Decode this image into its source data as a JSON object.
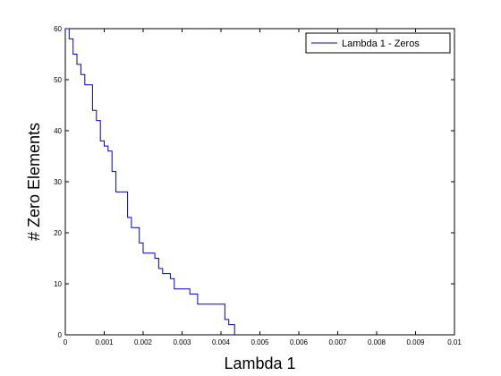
{
  "chart_data": {
    "type": "line",
    "title": "",
    "xlabel": "Lambda 1",
    "ylabel": "# Zero Elements",
    "xlim": [
      0,
      0.01
    ],
    "ylim": [
      0,
      60
    ],
    "xticks": [
      "0",
      "0.001",
      "0.002",
      "0.003",
      "0.004",
      "0.005",
      "0.006",
      "0.007",
      "0.008",
      "0.009",
      "0.01"
    ],
    "yticks": [
      "0",
      "10",
      "20",
      "30",
      "40",
      "50",
      "60"
    ],
    "grid": false,
    "legend_position": "top-right",
    "series": [
      {
        "name": "Lambda 1 - Zeros",
        "color": "#0000cc",
        "x": [
          0.0,
          0.0001,
          0.0002,
          0.0003,
          0.0004,
          0.0005,
          0.0006,
          0.0007,
          0.0008,
          0.0009,
          0.001,
          0.0011,
          0.0012,
          0.0013,
          0.0014,
          0.0015,
          0.0016,
          0.0017,
          0.0018,
          0.0019,
          0.002,
          0.0021,
          0.0022,
          0.0023,
          0.0024,
          0.0025,
          0.0026,
          0.0027,
          0.0028,
          0.0029,
          0.003,
          0.0031,
          0.0032,
          0.0033,
          0.0034,
          0.0035,
          0.0036,
          0.0037,
          0.0038,
          0.0039,
          0.004,
          0.0041,
          0.0042,
          0.00425,
          0.0043,
          0.00435
        ],
        "y": [
          60,
          58,
          55,
          53,
          51,
          49,
          49,
          44,
          42,
          38,
          37,
          36,
          32,
          28,
          28,
          28,
          23,
          21,
          21,
          18,
          16,
          16,
          16,
          15,
          13,
          12,
          12,
          11,
          9,
          9,
          9,
          9,
          8,
          8,
          6,
          6,
          6,
          6,
          6,
          6,
          6,
          3,
          2,
          2,
          2,
          0
        ]
      }
    ]
  }
}
